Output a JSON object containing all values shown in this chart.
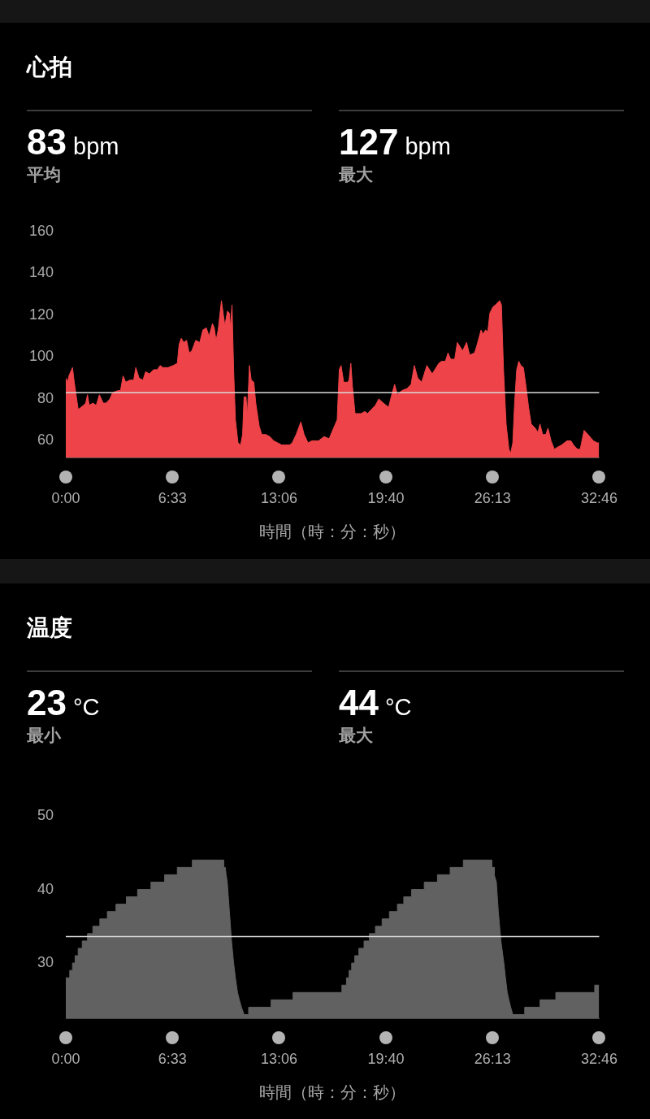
{
  "chart_data": [
    {
      "type": "area",
      "title": "心拍",
      "xlabel": "時間（時：分：秒）",
      "annotations": [
        "83 bpm",
        "平均",
        "127 bpm",
        "最大"
      ],
      "x": [
        0,
        0.11,
        0.19,
        0.41,
        0.52,
        0.76,
        0.93,
        1.09,
        1.22,
        1.33,
        1.44,
        1.66,
        1.87,
        2.06,
        2.3,
        2.47,
        2.71,
        2.87,
        3.2,
        3.36,
        3.52,
        3.68,
        3.93,
        4.17,
        4.3,
        4.5,
        4.74,
        4.9,
        5.14,
        5.39,
        5.63,
        5.79,
        5.96,
        6.28,
        6.6,
        6.85,
        6.96,
        7.09,
        7.25,
        7.42,
        7.58,
        7.74,
        7.98,
        8.23,
        8.42,
        8.63,
        8.8,
        9.01,
        9.12,
        9.23,
        9.36,
        9.56,
        9.77,
        9.93,
        10.05,
        10.11,
        10.21,
        10.31,
        10.42,
        10.58,
        10.74,
        10.86,
        10.95,
        11.07,
        11.15,
        11.28,
        11.39,
        11.55,
        11.67,
        11.88,
        12.04,
        12.28,
        12.53,
        12.77,
        13.02,
        13.26,
        13.5,
        13.75,
        13.91,
        14.15,
        14.44,
        14.64,
        14.88,
        15.12,
        15.37,
        15.53,
        15.86,
        16.18,
        16.34,
        16.5,
        16.67,
        16.8,
        16.91,
        17.07,
        17.32,
        17.4,
        17.51,
        17.61,
        17.77,
        18.13,
        18.37,
        18.53,
        18.78,
        19.02,
        19.23,
        19.51,
        19.83,
        19.99,
        20.2,
        20.37,
        20.64,
        20.97,
        21.21,
        21.41,
        21.62,
        21.86,
        22.18,
        22.51,
        22.91,
        23.08,
        23.32,
        23.48,
        23.64,
        23.89,
        24.05,
        24.38,
        24.62,
        24.81,
        25.11,
        25.27,
        25.51,
        25.62,
        25.79,
        25.92,
        26.05,
        26.24,
        26.4,
        26.65,
        26.76,
        26.89,
        27.05,
        27.22,
        27.33,
        27.46,
        27.57,
        27.7,
        27.83,
        27.95,
        28.11,
        28.27,
        28.43,
        28.59,
        28.84,
        29.0,
        29.13,
        29.29,
        29.49,
        29.62,
        29.81,
        30.01,
        30.22,
        30.46,
        30.79,
        31.03,
        31.19,
        31.43,
        31.6,
        31.84,
        32.08,
        32.41,
        32.65,
        32.76
      ],
      "values": [
        90,
        88,
        91,
        95,
        88,
        75,
        76,
        77,
        78,
        82,
        77,
        78,
        77,
        82,
        78,
        78,
        80,
        83,
        84,
        84,
        91,
        88,
        89,
        89,
        95,
        90,
        89,
        93,
        92,
        94,
        94,
        96,
        95,
        95,
        96,
        97,
        106,
        109,
        107,
        108,
        102,
        103,
        108,
        107,
        113,
        114,
        110,
        116,
        114,
        108,
        113,
        127,
        115,
        122,
        121,
        114,
        125,
        94,
        70,
        59,
        58,
        63,
        81,
        81,
        72,
        96,
        89,
        88,
        78,
        67,
        63,
        63,
        62,
        60,
        59,
        58,
        58,
        58,
        59,
        63,
        69,
        63,
        59,
        60,
        60,
        60,
        62,
        61,
        64,
        67,
        70,
        94,
        96,
        88,
        88,
        89,
        97,
        86,
        73,
        73,
        74,
        73,
        75,
        77,
        80,
        78,
        76,
        81,
        87,
        82,
        84,
        85,
        87,
        96,
        90,
        88,
        96,
        92,
        97,
        98,
        98,
        102,
        99,
        99,
        107,
        103,
        107,
        101,
        102,
        106,
        113,
        111,
        113,
        112,
        121,
        124,
        125,
        127,
        125,
        94,
        68,
        56,
        54,
        59,
        78,
        94,
        98,
        96,
        95,
        86,
        76,
        68,
        66,
        64,
        68,
        63,
        63,
        66,
        60,
        56,
        57,
        58,
        60,
        60,
        58,
        56,
        56,
        65,
        63,
        60,
        59,
        59
      ],
      "color": "#ee4449",
      "xlim": [
        0,
        32.767
      ],
      "xticks": [
        {
          "value": 0,
          "label": "0:00"
        },
        {
          "value": 6.55,
          "label": "6:33"
        },
        {
          "value": 13.1,
          "label": "13:06"
        },
        {
          "value": 19.667,
          "label": "19:40"
        },
        {
          "value": 26.217,
          "label": "26:13"
        },
        {
          "value": 32.767,
          "label": "32:46"
        }
      ],
      "ylim": [
        52,
        160
      ],
      "yticks": [
        60,
        80,
        100,
        120,
        140,
        160
      ],
      "ref_lines": [
        {
          "axis": "y",
          "value": 83,
          "color": "#d9d9d9"
        }
      ],
      "grid": false,
      "legend": false
    },
    {
      "type": "area",
      "title": "温度",
      "xlabel": "時間（時：分：秒）",
      "annotations": [
        "23 °C",
        "最小",
        "44 °C",
        "最大"
      ],
      "x": [
        0,
        0.24,
        0.24,
        0.41,
        0.41,
        0.57,
        0.57,
        0.76,
        0.76,
        1.01,
        1.01,
        1.33,
        1.33,
        1.66,
        1.66,
        2.09,
        2.09,
        2.55,
        2.55,
        3.08,
        3.08,
        3.72,
        3.72,
        4.41,
        4.41,
        5.23,
        5.23,
        6.07,
        6.07,
        6.85,
        6.85,
        7.77,
        7.77,
        9.69,
        9.69,
        9.8,
        9.85,
        9.92,
        10.05,
        10.18,
        10.31,
        10.42,
        10.55,
        10.66,
        10.79,
        10.95,
        11.23,
        11.23,
        12.61,
        12.61,
        13.96,
        13.96,
        16.96,
        16.96,
        17.24,
        17.24,
        17.4,
        17.4,
        17.56,
        17.56,
        17.75,
        17.75,
        18.0,
        18.0,
        18.32,
        18.32,
        18.65,
        18.65,
        19.02,
        19.02,
        19.43,
        19.43,
        19.88,
        19.88,
        20.37,
        20.37,
        20.76,
        20.76,
        21.24,
        21.24,
        22.02,
        22.02,
        22.83,
        22.83,
        23.61,
        23.61,
        24.42,
        24.42,
        26.16,
        26.16,
        26.32,
        26.32,
        26.45,
        26.57,
        26.73,
        26.91,
        27.01,
        27.12,
        27.22,
        27.33,
        27.46,
        28.19,
        28.19,
        29.13,
        29.13,
        30.1,
        30.1,
        32.49,
        32.49,
        32.76
      ],
      "values": [
        28,
        28,
        29,
        29,
        30,
        30,
        31,
        31,
        32,
        32,
        33,
        33,
        34,
        34,
        35,
        35,
        36,
        36,
        37,
        37,
        38,
        38,
        39,
        39,
        40,
        40,
        41,
        41,
        42,
        42,
        43,
        43,
        44,
        44,
        43,
        43,
        42,
        41,
        37,
        33,
        30,
        28,
        26,
        25,
        24,
        23,
        23,
        24,
        24,
        25,
        25,
        26,
        26,
        27,
        27,
        28,
        28,
        29,
        29,
        30,
        30,
        31,
        31,
        32,
        32,
        33,
        33,
        34,
        34,
        35,
        35,
        36,
        36,
        37,
        37,
        38,
        38,
        39,
        39,
        40,
        40,
        41,
        41,
        42,
        42,
        43,
        43,
        44,
        44,
        43,
        43,
        42,
        41,
        37,
        33,
        30,
        28,
        26,
        25,
        24,
        23,
        23,
        24,
        24,
        25,
        25,
        26,
        26,
        27,
        27
      ],
      "color": "#616161",
      "xlim": [
        0,
        32.767
      ],
      "xticks": [
        {
          "value": 0,
          "label": "0:00"
        },
        {
          "value": 6.55,
          "label": "6:33"
        },
        {
          "value": 13.1,
          "label": "13:06"
        },
        {
          "value": 19.667,
          "label": "19:40"
        },
        {
          "value": 26.217,
          "label": "26:13"
        },
        {
          "value": 32.767,
          "label": "32:46"
        }
      ],
      "ylim": [
        22.5,
        50
      ],
      "yticks": [
        30,
        40,
        50
      ],
      "ref_lines": [
        {
          "axis": "y",
          "value": 33.6,
          "color": "#d9d9d9"
        }
      ],
      "grid": false,
      "legend": false
    }
  ]
}
